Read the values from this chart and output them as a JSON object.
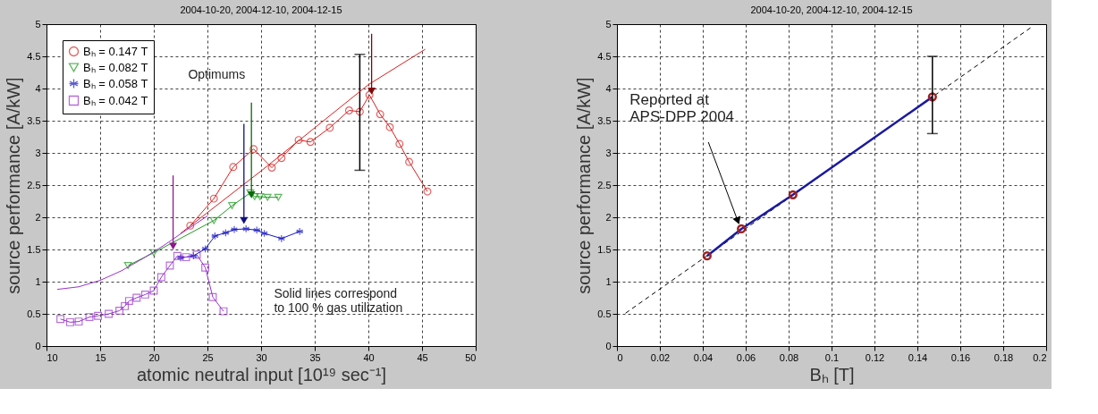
{
  "chart_data": [
    {
      "type": "line",
      "title": "2004-10-20, 2004-12-10, 2004-12-15",
      "xlabel": "atomic neutral input [10¹⁹ sec⁻¹]",
      "ylabel": "source performance [A/kW]",
      "xlim": [
        10,
        50
      ],
      "xticks": [
        10,
        15,
        20,
        25,
        30,
        35,
        40,
        45,
        50
      ],
      "ylim": [
        0,
        5
      ],
      "yticks": [
        0,
        0.5,
        1,
        1.5,
        2,
        2.5,
        3,
        3.5,
        4,
        4.5,
        5
      ],
      "grid": true,
      "legend": "top left",
      "series": [
        {
          "name": "Bₕ = 0.147 T",
          "color": "#d62020",
          "marker": "circle",
          "x": [
            23.4,
            25.6,
            27.4,
            29.3,
            31.0,
            31.9,
            33.5,
            34.6,
            36.4,
            38.2,
            39.2,
            40.1,
            41.1,
            42.0,
            42.9,
            43.8,
            45.5
          ],
          "values": [
            1.87,
            2.29,
            2.78,
            3.06,
            2.77,
            2.92,
            3.2,
            3.17,
            3.39,
            3.66,
            3.64,
            3.9,
            3.6,
            3.4,
            3.14,
            2.86,
            2.4
          ],
          "errors": [
            null,
            null,
            null,
            null,
            null,
            null,
            null,
            null,
            null,
            null,
            [
              2.73,
              4.53
            ],
            null,
            null,
            null,
            null,
            null,
            null
          ]
        },
        {
          "name": "Bₕ = 0.082 T",
          "color": "#1f9a1f",
          "marker": "triangle",
          "x": [
            17.6,
            20.0,
            25.6,
            27.3,
            29.0,
            29.4,
            29.9,
            30.6,
            31.6
          ],
          "values": [
            1.25,
            1.45,
            1.95,
            2.18,
            2.38,
            2.32,
            2.32,
            2.31,
            2.31
          ]
        },
        {
          "name": "Bₕ = 0.058 T",
          "color": "#1515c0",
          "marker": "cross",
          "x": [
            22.5,
            23.7,
            24.8,
            25.7,
            26.7,
            27.5,
            28.6,
            29.6,
            30.3,
            31.9,
            33.6
          ],
          "values": [
            1.37,
            1.4,
            1.51,
            1.71,
            1.76,
            1.81,
            1.82,
            1.8,
            1.75,
            1.67,
            1.78
          ]
        },
        {
          "name": "Bₕ = 0.042 T",
          "color": "#9933cc",
          "marker": "square",
          "x": [
            11.3,
            12.2,
            13,
            14,
            14.8,
            15.8,
            16.8,
            17.3,
            17.7,
            18.4,
            19.2,
            20,
            20.7,
            21.5,
            22.2,
            23,
            24,
            24.8,
            25.5,
            26.5
          ],
          "values": [
            0.42,
            0.37,
            0.38,
            0.45,
            0.47,
            0.5,
            0.55,
            0.62,
            0.7,
            0.75,
            0.8,
            0.86,
            1.07,
            1.25,
            1.4,
            1.38,
            1.42,
            1.22,
            0.76,
            0.54
          ]
        },
        {
          "color": "#d62020",
          "marker": "none",
          "x": [
            22.5,
            30,
            40,
            45.3
          ],
          "values": [
            1.75,
            2.72,
            4.06,
            4.61
          ]
        },
        {
          "color": "#9933cc",
          "marker": "none",
          "x": [
            11,
            13,
            15,
            17,
            19,
            21,
            23,
            25
          ],
          "values": [
            0.88,
            0.92,
            1.02,
            1.17,
            1.36,
            1.57,
            1.8,
            2.02
          ]
        },
        {
          "type": "scatter",
          "marker": "triangle",
          "colors": [
            "#8b1a8b",
            "#101080",
            "#0a6a0a",
            "#8b0000"
          ],
          "x": [
            21.8,
            28.4,
            29.1,
            40.3
          ],
          "values": [
            1.55,
            1.95,
            2.35,
            3.96
          ],
          "errors": [
            [
              1.55,
              2.65
            ],
            [
              1.95,
              3.45
            ],
            [
              2.35,
              3.78
            ],
            [
              3.96,
              4.85
            ]
          ]
        }
      ],
      "annotations": [
        "Optimums",
        "Solid lines correspond\nto 100 % gas utilization"
      ]
    },
    {
      "type": "line",
      "title": "2004-10-20, 2004-12-10, 2004-12-15",
      "xlabel": "Bₕ [T]",
      "ylabel": "source performance [A/kW]",
      "xlim": [
        0,
        0.2
      ],
      "xticks": [
        0,
        0.02,
        0.04,
        0.06,
        0.08,
        0.1,
        0.12,
        0.14,
        0.16,
        0.18,
        0.2
      ],
      "ylim": [
        0,
        5
      ],
      "yticks": [
        0,
        0.5,
        1,
        1.5,
        2,
        2.5,
        3,
        3.5,
        4,
        4.5,
        5
      ],
      "grid": true,
      "series": [
        {
          "color": "#000000",
          "marker": "none",
          "line_style": "dashed",
          "x": [
            0.004,
            0.193
          ],
          "values": [
            0.51,
            4.95
          ]
        },
        {
          "color": "#1a1aa0",
          "marker": "circle",
          "colors": [
            "#a02020",
            "#a02020",
            "#a02020",
            "#a02020"
          ],
          "x": [
            0.042,
            0.058,
            0.082,
            0.147
          ],
          "values": [
            1.4,
            1.82,
            2.35,
            3.87
          ],
          "errors": [
            null,
            null,
            null,
            [
              3.3,
              4.5
            ]
          ]
        }
      ],
      "annotations": [
        {
          "text": "Reported at\nAPS-DPP 2004",
          "x": 0.058,
          "y": 1.82
        }
      ]
    }
  ]
}
